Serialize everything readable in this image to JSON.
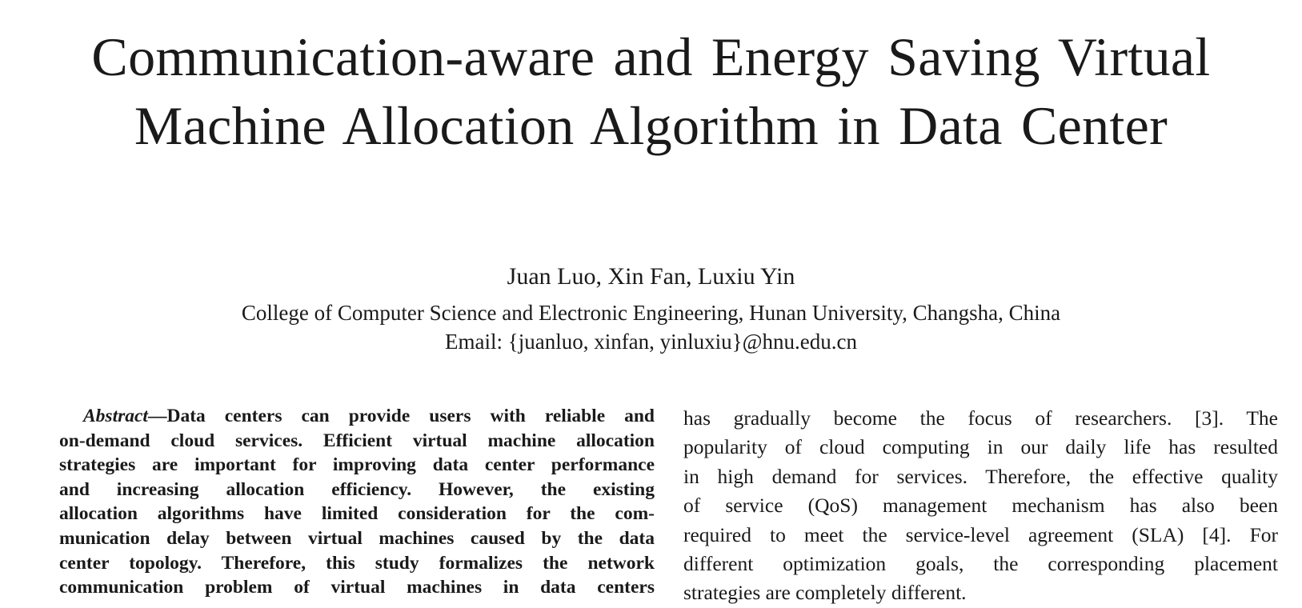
{
  "title": {
    "line1": "Communication-aware and Energy Saving Virtual",
    "line2": "Machine Allocation Algorithm in Data Center"
  },
  "authors": "Juan Luo, Xin Fan, Luxiu Yin",
  "affiliation": "College of Computer Science and Electronic Engineering, Hunan University, Changsha, China",
  "email": "Email: {juanluo, xinfan, yinluxiu}@hnu.edu.cn",
  "abstract": {
    "label": "Abstract",
    "lines": [
      "—Data centers can provide users with reliable and",
      "on-demand cloud services. Efficient virtual machine allocation",
      "strategies are important for improving data center performance",
      "and increasing allocation efficiency. However, the existing",
      "allocation algorithms have limited consideration for the com-",
      "munication delay between virtual machines caused by the data",
      "center topology. Therefore, this study formalizes the network",
      "communication problem of virtual machines in data centers"
    ]
  },
  "right_column": {
    "lines": [
      "has gradually become the focus of researchers. [3]. The",
      "popularity of cloud computing in our daily life has resulted",
      "in high demand for services. Therefore, the effective quality",
      "of service (QoS) management mechanism has also been",
      "required to meet the service-level agreement (SLA) [4]. For",
      "different optimization goals, the corresponding placement",
      "strategies are completely different."
    ]
  }
}
